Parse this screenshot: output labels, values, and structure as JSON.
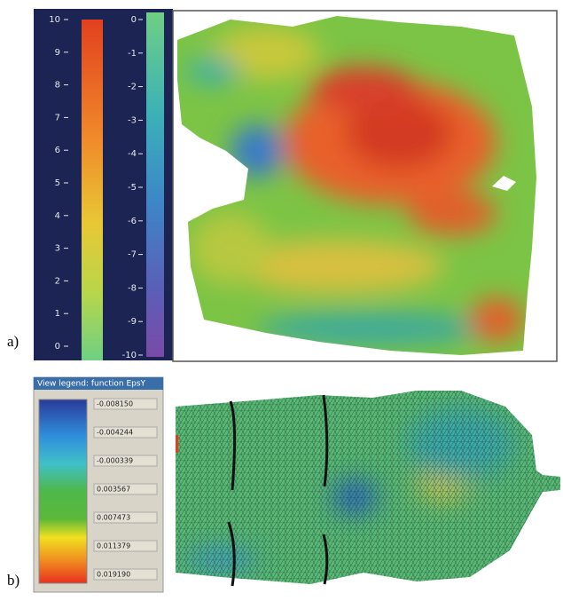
{
  "panel_a": {
    "label": "a)",
    "colorbar_left": {
      "ticks": [
        10,
        9,
        8,
        7,
        6,
        5,
        4,
        3,
        2,
        1,
        0
      ]
    },
    "colorbar_right": {
      "ticks": [
        0,
        -1,
        -2,
        -3,
        -4,
        -5,
        -6,
        -7,
        -8,
        -9,
        -10
      ]
    }
  },
  "panel_b": {
    "label": "b)",
    "legend_title": "View legend: function EpsY",
    "legend_values": [
      "-0.008150",
      "-0.004244",
      "-0.000339",
      "0.003567",
      "0.007473",
      "0.011379",
      "0.019190"
    ]
  }
}
